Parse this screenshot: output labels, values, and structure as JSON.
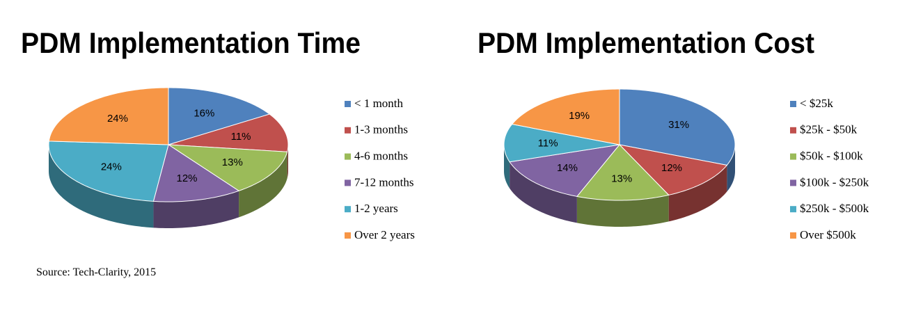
{
  "chart_data": [
    {
      "type": "pie",
      "title": "PDM Implementation Time",
      "categories": [
        "< 1 month",
        "1-3 months",
        "4-6 months",
        "7-12 months",
        "1-2 years",
        "Over 2 years"
      ],
      "values": [
        16,
        11,
        13,
        12,
        24,
        24
      ],
      "value_labels": [
        "16%",
        "11%",
        "13%",
        "12%",
        "24%",
        "24%"
      ],
      "colors": [
        "#4f81bd",
        "#c0504d",
        "#9bbb59",
        "#8064a2",
        "#4bacc6",
        "#f79646"
      ]
    },
    {
      "type": "pie",
      "title": "PDM Implementation Cost",
      "categories": [
        "< $25k",
        "$25k - $50k",
        "$50k - $100k",
        "$100k - $250k",
        "$250k - $500k",
        "Over $500k"
      ],
      "values": [
        31,
        12,
        13,
        14,
        11,
        19
      ],
      "value_labels": [
        "31%",
        "12%",
        "13%",
        "14%",
        "11%",
        "19%"
      ],
      "colors": [
        "#4f81bd",
        "#c0504d",
        "#9bbb59",
        "#8064a2",
        "#4bacc6",
        "#f79646"
      ]
    }
  ],
  "source": "Source: Tech-Clarity, 2015"
}
